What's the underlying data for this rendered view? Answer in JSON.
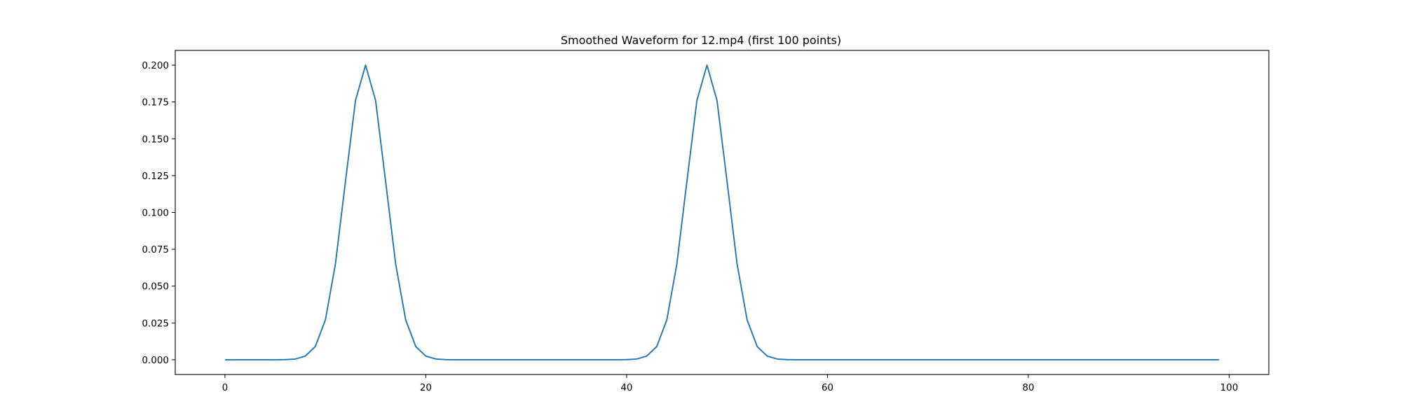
{
  "chart_data": {
    "type": "line",
    "title": "Smoothed Waveform for 12.mp4 (first 100 points)",
    "xlabel": "",
    "ylabel": "",
    "xlim": [
      -4.95,
      103.95
    ],
    "ylim": [
      -0.01,
      0.21
    ],
    "xticks": [
      0,
      20,
      40,
      60,
      80,
      100
    ],
    "xtick_labels": [
      "0",
      "20",
      "40",
      "60",
      "80",
      "100"
    ],
    "yticks": [
      0.0,
      0.025,
      0.05,
      0.075,
      0.1,
      0.125,
      0.15,
      0.175,
      0.2
    ],
    "ytick_labels": [
      "0.000",
      "0.025",
      "0.050",
      "0.075",
      "0.100",
      "0.125",
      "0.150",
      "0.175",
      "0.200"
    ],
    "grid": false,
    "legend": "none",
    "series": [
      {
        "color": "#1f77b4",
        "x": [
          0,
          1,
          2,
          3,
          4,
          5,
          6,
          7,
          8,
          9,
          10,
          11,
          12,
          13,
          14,
          15,
          16,
          17,
          18,
          19,
          20,
          21,
          22,
          23,
          24,
          25,
          26,
          27,
          28,
          29,
          30,
          31,
          32,
          33,
          34,
          35,
          36,
          37,
          38,
          39,
          40,
          41,
          42,
          43,
          44,
          45,
          46,
          47,
          48,
          49,
          50,
          51,
          52,
          53,
          54,
          55,
          56,
          57,
          58,
          59,
          60,
          61,
          62,
          63,
          64,
          65,
          66,
          67,
          68,
          69,
          70,
          71,
          72,
          73,
          74,
          75,
          76,
          77,
          78,
          79,
          80,
          81,
          82,
          83,
          84,
          85,
          86,
          87,
          88,
          89,
          90,
          91,
          92,
          93,
          94,
          95,
          96,
          97,
          98,
          99
        ],
        "values": [
          0,
          0,
          0,
          0,
          0,
          0,
          0.0001,
          0.0005,
          0.0025,
          0.009,
          0.027,
          0.065,
          0.121,
          0.176,
          0.2,
          0.176,
          0.121,
          0.065,
          0.027,
          0.009,
          0.0025,
          0.0005,
          0.0001,
          0,
          0,
          0,
          0,
          0,
          0,
          0,
          0,
          0,
          0,
          0,
          0,
          0,
          0,
          0,
          0,
          0,
          0.0001,
          0.0005,
          0.0025,
          0.009,
          0.027,
          0.065,
          0.121,
          0.176,
          0.2,
          0.176,
          0.121,
          0.065,
          0.027,
          0.009,
          0.0025,
          0.0005,
          0.0001,
          0,
          0,
          0,
          0,
          0,
          0,
          0,
          0,
          0,
          0,
          0,
          0,
          0,
          0,
          0,
          0,
          0,
          0,
          0,
          0,
          0,
          0,
          0,
          0,
          0,
          0,
          0,
          0,
          0,
          0,
          0,
          0,
          0,
          0,
          0,
          0,
          0,
          0,
          0,
          0,
          0,
          0,
          0
        ]
      }
    ]
  }
}
